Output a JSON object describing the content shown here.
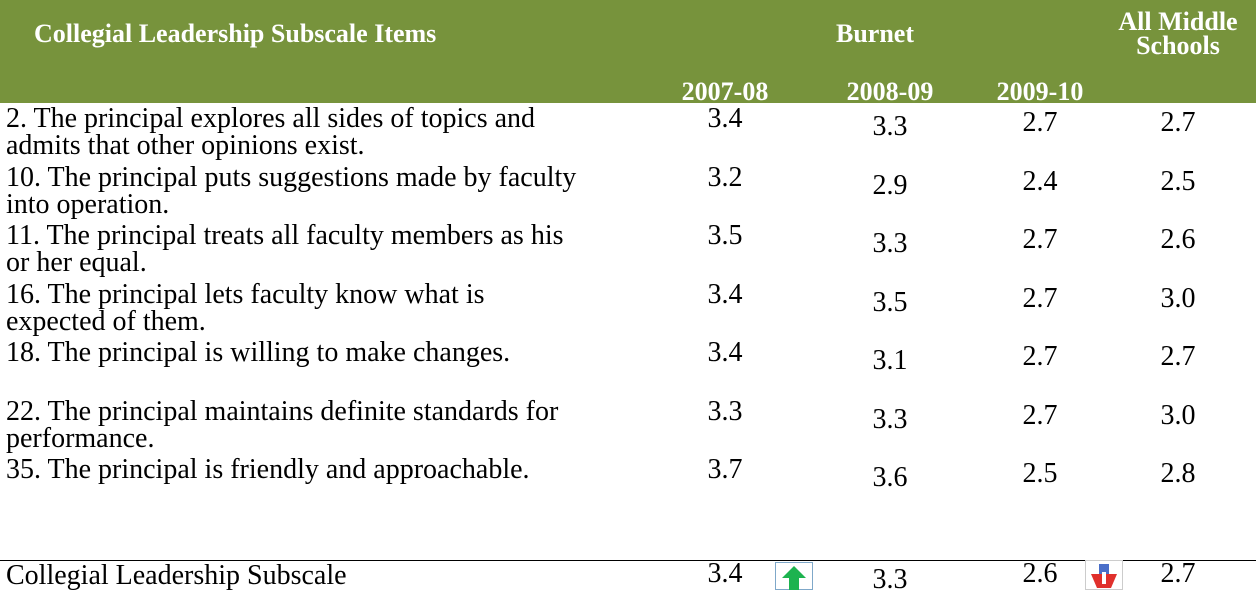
{
  "table": {
    "header": {
      "title": "Collegial Leadership Subscale Items",
      "group": "Burnet",
      "all": "All Middle Schools",
      "years": [
        "2007-08",
        "2008-09",
        "2009-10"
      ]
    },
    "rows": [
      {
        "item": "2. The principal explores all sides of topics and admits that other opinions exist.",
        "values": [
          "3.4",
          "3.3",
          "2.7",
          "2.7"
        ]
      },
      {
        "item": "10. The principal puts suggestions made by faculty into operation.",
        "values": [
          "3.2",
          "2.9",
          "2.4",
          "2.5"
        ]
      },
      {
        "item": "11. The principal treats all faculty members as his or her equal.",
        "values": [
          "3.5",
          "3.3",
          "2.7",
          "2.6"
        ]
      },
      {
        "item": "16. The principal lets faculty know what is expected of them.",
        "values": [
          "3.4",
          "3.5",
          "2.7",
          "3.0"
        ]
      },
      {
        "item": "18. The principal is willing to make changes.",
        "values": [
          "3.4",
          "3.1",
          "2.7",
          "2.7"
        ]
      },
      {
        "item": "22. The principal maintains definite standards for performance.",
        "values": [
          "3.3",
          "3.3",
          "2.7",
          "3.0"
        ]
      },
      {
        "item": "35. The principal is friendly and approachable.",
        "values": [
          "3.7",
          "3.6",
          "2.5",
          "2.8"
        ]
      }
    ],
    "summary": {
      "item": "Collegial Leadership Subscale",
      "values": [
        "3.4",
        "3.3",
        "2.6",
        "2.7"
      ]
    }
  }
}
